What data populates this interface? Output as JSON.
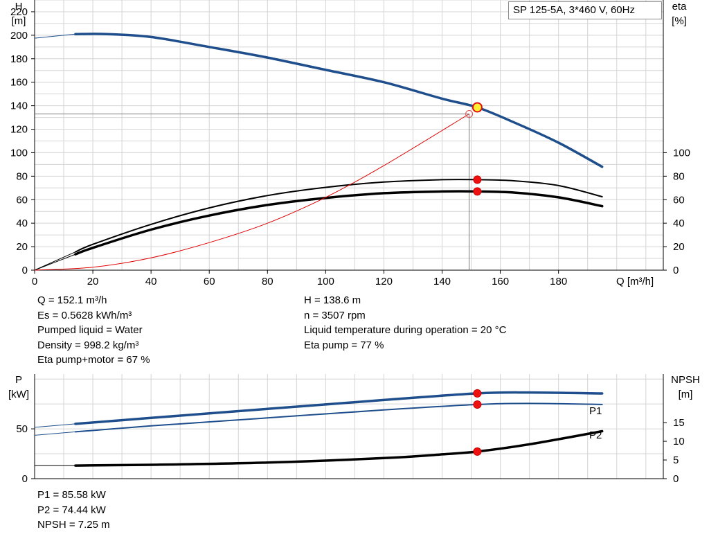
{
  "chart_data": [
    {
      "type": "line",
      "title": "SP 125-5A, 3*460 V, 60Hz",
      "xlabel": "Q [m³/h]",
      "ylabel_left": "H",
      "ylabel_left_unit": "[m]",
      "ylabel_right": "eta",
      "ylabel_right_unit": "[%]",
      "xlim": [
        0,
        216
      ],
      "ylim_left": [
        0,
        230
      ],
      "ylim_right": [
        0,
        100
      ],
      "x_ticks": [
        0,
        20,
        40,
        60,
        80,
        100,
        120,
        140,
        160,
        180
      ],
      "y_left_ticks": [
        0,
        20,
        40,
        60,
        80,
        100,
        120,
        140,
        160,
        180,
        200,
        220
      ],
      "y_right_ticks": [
        0,
        20,
        40,
        60,
        80,
        100
      ],
      "grid": true,
      "series": [
        {
          "name": "H",
          "axis": "left",
          "color": "#1f4e8c",
          "x": [
            0,
            14,
            25,
            40,
            60,
            80,
            100,
            120,
            140,
            152.1,
            165,
            180,
            195
          ],
          "y": [
            197.5,
            201,
            201,
            198.5,
            190,
            181,
            170.5,
            160,
            146,
            138.6,
            125.5,
            108.5,
            88
          ]
        },
        {
          "name": "Eta pump",
          "axis": "right",
          "color": "#000000",
          "x": [
            0,
            14,
            20,
            40,
            60,
            80,
            100,
            120,
            140,
            152.1,
            165,
            180,
            195
          ],
          "y": [
            0,
            15.5,
            22,
            39,
            53,
            63.5,
            70.5,
            75,
            77,
            77,
            76,
            72,
            62.5
          ]
        },
        {
          "name": "Eta pump+motor",
          "axis": "right",
          "color": "#000000",
          "x": [
            0,
            14,
            20,
            40,
            60,
            80,
            100,
            120,
            140,
            152.1,
            165,
            180,
            195
          ],
          "y": [
            0,
            13.5,
            19,
            34.5,
            46.5,
            55.5,
            61.5,
            65.5,
            67,
            67,
            66,
            62,
            54.5
          ]
        },
        {
          "name": "System curve",
          "axis": "left",
          "color": "#e00000",
          "x": [
            0,
            20,
            40,
            60,
            80,
            100,
            120,
            149.3
          ],
          "y": [
            0,
            2.5,
            10.5,
            23.5,
            40,
            62,
            89,
            133
          ]
        }
      ],
      "operating_point": {
        "x": 152.1,
        "y": 138.6
      },
      "system_point": {
        "x": 149.3,
        "y": 133
      },
      "eta_points": [
        {
          "x": 152.1,
          "y": 77
        },
        {
          "x": 152.1,
          "y": 67
        }
      ]
    },
    {
      "type": "line",
      "ylabel_left": "P",
      "ylabel_left_unit": "[kW]",
      "ylabel_right": "NPSH",
      "ylabel_right_unit": "[m]",
      "xlim": [
        0,
        216
      ],
      "ylim_left": [
        0,
        105
      ],
      "ylim_right": [
        0,
        28
      ],
      "y_left_ticks": [
        0,
        50
      ],
      "y_right_ticks": [
        0,
        5,
        10,
        15
      ],
      "grid": true,
      "series": [
        {
          "name": "P1",
          "axis": "left",
          "color": "#1f4e8c",
          "x": [
            0,
            14,
            40,
            80,
            120,
            152.1,
            170,
            195
          ],
          "y": [
            51.5,
            55,
            61,
            70,
            79,
            85.58,
            86.5,
            85.5
          ]
        },
        {
          "name": "P2",
          "axis": "left",
          "color": "#1f4e8c",
          "x": [
            0,
            14,
            40,
            80,
            120,
            152.1,
            170,
            195
          ],
          "y": [
            43.5,
            47,
            53,
            61,
            69,
            74.44,
            75.5,
            74.5
          ]
        },
        {
          "name": "NPSH",
          "axis": "right",
          "color": "#000000",
          "x": [
            0,
            14,
            40,
            80,
            120,
            140,
            152.1,
            170,
            195
          ],
          "y": [
            3.5,
            3.5,
            3.7,
            4.3,
            5.5,
            6.5,
            7.25,
            9.2,
            12.7
          ]
        }
      ],
      "points": [
        {
          "series": "P1",
          "x": 152.1,
          "y": 85.58
        },
        {
          "series": "P2",
          "x": 152.1,
          "y": 74.44
        },
        {
          "series": "NPSH",
          "x": 152.1,
          "y": 7.25
        }
      ]
    }
  ],
  "info_left": [
    "Q = 152.1 m³/h",
    "Es = 0.5628 kWh/m³",
    "Pumped liquid = Water",
    "Density = 998.2 kg/m³",
    "Eta pump+motor = 67 %"
  ],
  "info_right": [
    "H = 138.6 m",
    "n = 3507 rpm",
    "Liquid temperature during operation = 20 °C",
    "Eta pump = 77 %"
  ],
  "info_bottom": [
    "P1 = 85.58 kW",
    "P2 = 74.44 kW",
    "NPSH = 7.25 m"
  ]
}
